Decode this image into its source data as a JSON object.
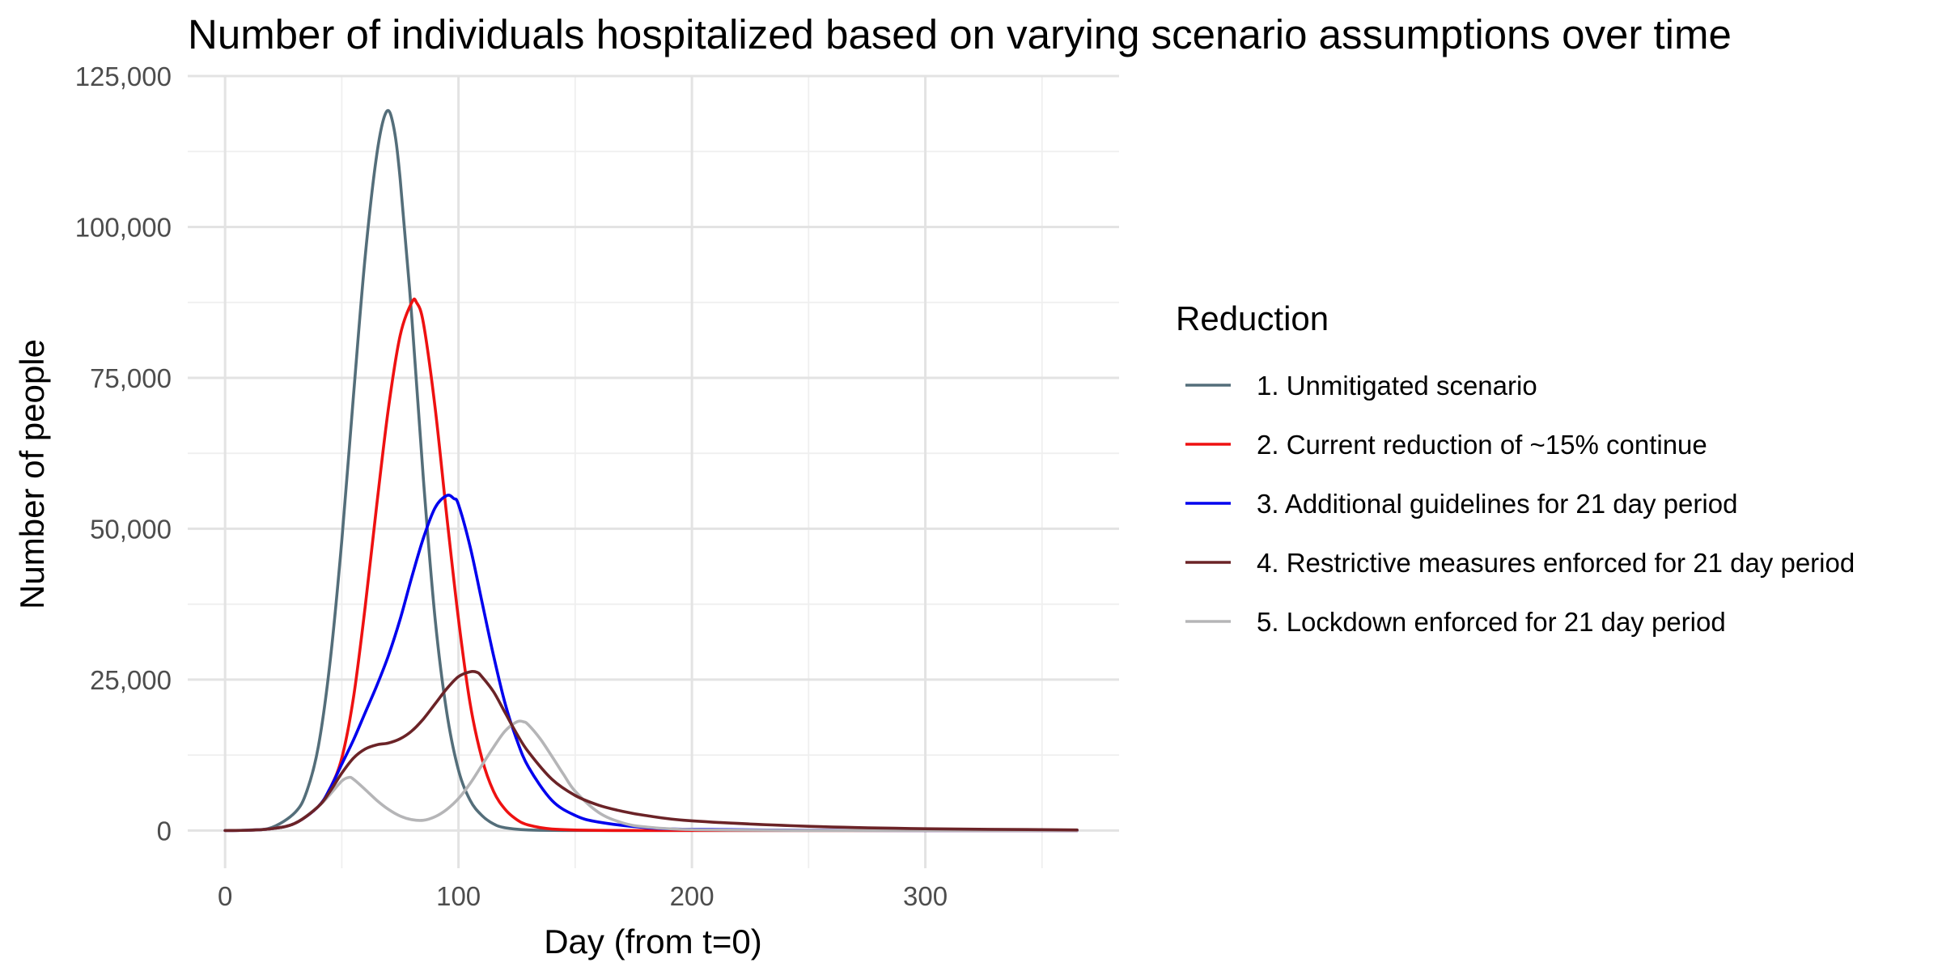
{
  "chart_data": {
    "type": "line",
    "title": "Number of individuals hospitalized based on varying scenario assumptions over time",
    "xlabel": "Day (from t=0)",
    "ylabel": "Number of people",
    "xlim": [
      -16,
      383
    ],
    "ylim": [
      -6250,
      125000
    ],
    "x_ticks": [
      0,
      100,
      200,
      300
    ],
    "x_tick_labels": [
      "0",
      "100",
      "200",
      "300"
    ],
    "x_minor_ticks": [
      50,
      150,
      250,
      350
    ],
    "y_ticks": [
      0,
      25000,
      50000,
      75000,
      100000,
      125000
    ],
    "y_tick_labels": [
      "0",
      "25,000",
      "50,000",
      "75,000",
      "100,000",
      "125,000"
    ],
    "y_minor_ticks": [
      12500,
      37500,
      62500,
      87500,
      112500
    ],
    "grid": true,
    "legend": {
      "title": "Reduction",
      "position": "right"
    },
    "series": [
      {
        "name": "1. Unmitigated scenario",
        "color": "#546e7a",
        "points": [
          [
            0,
            0
          ],
          [
            10,
            80
          ],
          [
            20,
            500
          ],
          [
            30,
            3000
          ],
          [
            35,
            6500
          ],
          [
            40,
            14000
          ],
          [
            45,
            28000
          ],
          [
            50,
            48000
          ],
          [
            55,
            72000
          ],
          [
            60,
            95000
          ],
          [
            65,
            112000
          ],
          [
            69,
            119000
          ],
          [
            72,
            117000
          ],
          [
            75,
            108000
          ],
          [
            80,
            85000
          ],
          [
            85,
            58000
          ],
          [
            90,
            35000
          ],
          [
            95,
            19500
          ],
          [
            100,
            10000
          ],
          [
            105,
            5000
          ],
          [
            110,
            2500
          ],
          [
            115,
            1100
          ],
          [
            120,
            450
          ],
          [
            130,
            100
          ],
          [
            150,
            10
          ],
          [
            200,
            0
          ],
          [
            365,
            0
          ]
        ]
      },
      {
        "name": "2. Current reduction of ~15% continue",
        "color": "#ee1111",
        "points": [
          [
            0,
            0
          ],
          [
            10,
            50
          ],
          [
            20,
            300
          ],
          [
            30,
            1200
          ],
          [
            40,
            4000
          ],
          [
            45,
            7000
          ],
          [
            50,
            12000
          ],
          [
            55,
            22000
          ],
          [
            60,
            37000
          ],
          [
            65,
            54000
          ],
          [
            70,
            70000
          ],
          [
            75,
            82000
          ],
          [
            80,
            87500
          ],
          [
            82,
            87500
          ],
          [
            85,
            84000
          ],
          [
            90,
            70000
          ],
          [
            95,
            52000
          ],
          [
            100,
            35000
          ],
          [
            105,
            21000
          ],
          [
            110,
            12000
          ],
          [
            115,
            6500
          ],
          [
            120,
            3500
          ],
          [
            125,
            1800
          ],
          [
            130,
            900
          ],
          [
            140,
            250
          ],
          [
            160,
            30
          ],
          [
            200,
            0
          ],
          [
            365,
            0
          ]
        ]
      },
      {
        "name": "3. Additional guidelines for 21 day period",
        "color": "#0000ee",
        "points": [
          [
            0,
            0
          ],
          [
            10,
            50
          ],
          [
            20,
            300
          ],
          [
            30,
            1200
          ],
          [
            40,
            4000
          ],
          [
            45,
            7000
          ],
          [
            50,
            11000
          ],
          [
            55,
            15000
          ],
          [
            60,
            19500
          ],
          [
            65,
            24000
          ],
          [
            70,
            29000
          ],
          [
            75,
            35000
          ],
          [
            80,
            42000
          ],
          [
            85,
            48500
          ],
          [
            90,
            53500
          ],
          [
            95,
            55500
          ],
          [
            98,
            55000
          ],
          [
            100,
            54000
          ],
          [
            105,
            47000
          ],
          [
            110,
            38000
          ],
          [
            115,
            29000
          ],
          [
            120,
            21000
          ],
          [
            125,
            15000
          ],
          [
            130,
            10500
          ],
          [
            140,
            5000
          ],
          [
            150,
            2500
          ],
          [
            160,
            1400
          ],
          [
            180,
            500
          ],
          [
            200,
            200
          ],
          [
            250,
            50
          ],
          [
            300,
            10
          ],
          [
            365,
            0
          ]
        ]
      },
      {
        "name": "4. Restrictive measures enforced for 21 day period",
        "color": "#6b2327",
        "points": [
          [
            0,
            0
          ],
          [
            10,
            50
          ],
          [
            20,
            300
          ],
          [
            30,
            1200
          ],
          [
            40,
            4000
          ],
          [
            45,
            6500
          ],
          [
            50,
            9500
          ],
          [
            55,
            12000
          ],
          [
            60,
            13500
          ],
          [
            65,
            14200
          ],
          [
            70,
            14500
          ],
          [
            75,
            15200
          ],
          [
            80,
            16500
          ],
          [
            85,
            18500
          ],
          [
            90,
            21000
          ],
          [
            95,
            23500
          ],
          [
            100,
            25500
          ],
          [
            105,
            26300
          ],
          [
            108,
            26200
          ],
          [
            110,
            25500
          ],
          [
            115,
            23000
          ],
          [
            120,
            19500
          ],
          [
            125,
            16000
          ],
          [
            130,
            13000
          ],
          [
            140,
            8500
          ],
          [
            150,
            5800
          ],
          [
            160,
            4200
          ],
          [
            170,
            3200
          ],
          [
            180,
            2500
          ],
          [
            200,
            1600
          ],
          [
            250,
            700
          ],
          [
            300,
            300
          ],
          [
            365,
            100
          ]
        ]
      },
      {
        "name": "5. Lockdown enforced for 21 day period",
        "color": "#b5b5b7",
        "points": [
          [
            0,
            0
          ],
          [
            10,
            50
          ],
          [
            20,
            300
          ],
          [
            30,
            1200
          ],
          [
            40,
            4000
          ],
          [
            45,
            6000
          ],
          [
            50,
            8200
          ],
          [
            53,
            8800
          ],
          [
            55,
            8500
          ],
          [
            60,
            6800
          ],
          [
            65,
            5000
          ],
          [
            70,
            3500
          ],
          [
            75,
            2400
          ],
          [
            80,
            1800
          ],
          [
            85,
            1700
          ],
          [
            90,
            2300
          ],
          [
            95,
            3500
          ],
          [
            100,
            5300
          ],
          [
            105,
            7800
          ],
          [
            110,
            10800
          ],
          [
            115,
            13800
          ],
          [
            120,
            16500
          ],
          [
            125,
            18000
          ],
          [
            128,
            18000
          ],
          [
            130,
            17500
          ],
          [
            135,
            15200
          ],
          [
            140,
            12300
          ],
          [
            145,
            9300
          ],
          [
            150,
            6500
          ],
          [
            160,
            3000
          ],
          [
            170,
            1300
          ],
          [
            180,
            600
          ],
          [
            200,
            150
          ],
          [
            250,
            20
          ],
          [
            365,
            0
          ]
        ]
      }
    ]
  }
}
